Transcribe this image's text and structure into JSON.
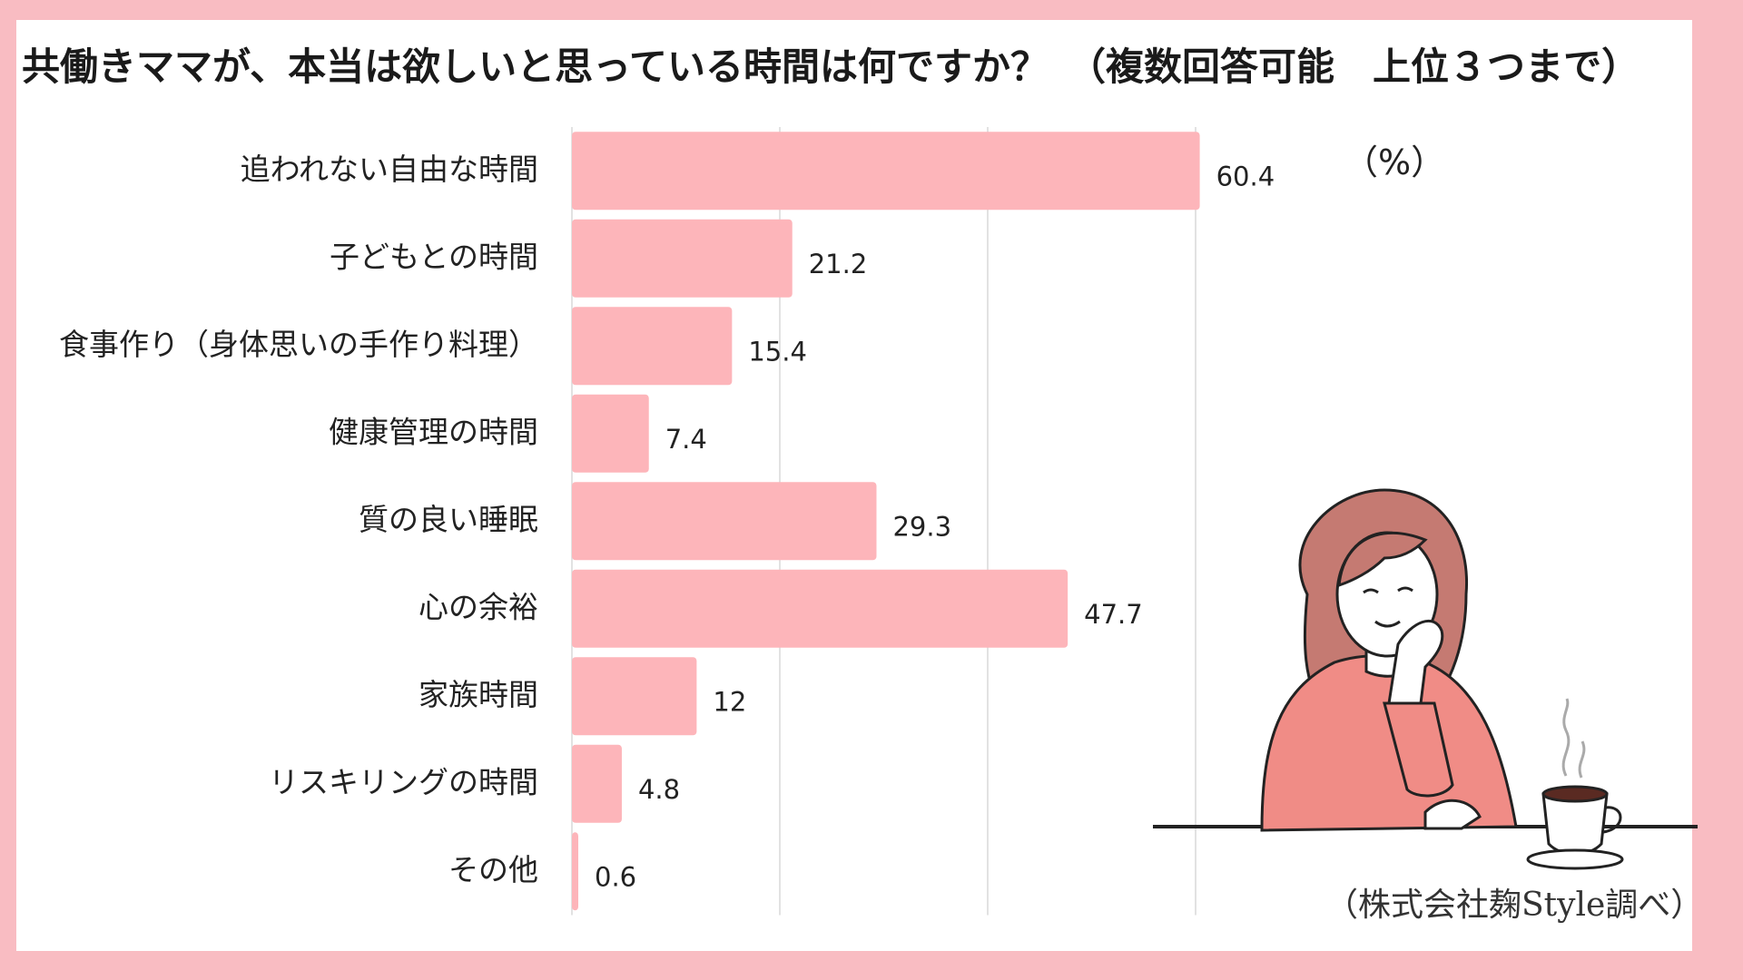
{
  "title": "共働きママが、本当は欲しいと思っている時間は何ですか？　（複数回答可能　上位３つまで）",
  "unit_label": "（%）",
  "credit": "（株式会社麹Style調べ）",
  "colors": {
    "bar": "#fdb5ba",
    "frame": "#f9bcc2",
    "grid": "#d9d9d9",
    "text": "#222222"
  },
  "chart_data": {
    "type": "bar",
    "orientation": "horizontal",
    "categories": [
      "追われない自由な時間",
      "子どもとの時間",
      "食事作り（身体思いの手作り料理）",
      "健康管理の時間",
      "質の良い睡眠",
      "心の余裕",
      "家族時間",
      "リスキリングの時間",
      "その他"
    ],
    "values": [
      60.4,
      21.2,
      15.4,
      7.4,
      29.3,
      47.7,
      12,
      4.8,
      0.6
    ],
    "value_labels": [
      "60.4",
      "21.2",
      "15.4",
      "7.4",
      "29.3",
      "47.7",
      "12",
      "4.8",
      "0.6"
    ],
    "xlim": [
      0,
      75
    ],
    "grid": true,
    "title": "共働きママが、本当は欲しいと思っている時間は何ですか？　（複数回答可能　上位３つまで）",
    "xlabel": "",
    "ylabel": ""
  },
  "illustration": {
    "description_icon": "woman-with-coffee-illustration"
  }
}
